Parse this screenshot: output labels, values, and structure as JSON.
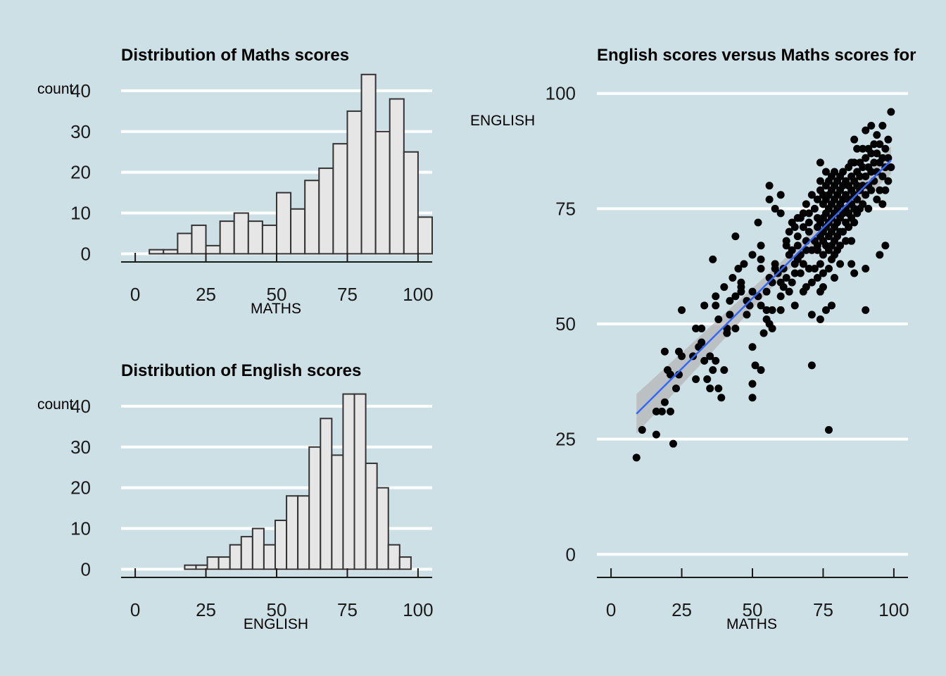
{
  "chart_data": [
    {
      "type": "bar",
      "title": "Distribution of Maths scores",
      "xlabel": "MATHS",
      "ylabel": "count",
      "xlim": [
        -5,
        105
      ],
      "ylim": [
        -2,
        45
      ],
      "xticks": [
        0,
        25,
        50,
        75,
        100
      ],
      "yticks": [
        0,
        10,
        20,
        30,
        40
      ],
      "grid": "horizontal",
      "bin_width": 5,
      "bins": [
        {
          "x": 10,
          "count": 1
        },
        {
          "x": 15,
          "count": 1
        },
        {
          "x": 20,
          "count": 5
        },
        {
          "x": 25,
          "count": 7
        },
        {
          "x": 30,
          "count": 2
        },
        {
          "x": 35,
          "count": 8
        },
        {
          "x": 40,
          "count": 10
        },
        {
          "x": 45,
          "count": 8
        },
        {
          "x": 50,
          "count": 7
        },
        {
          "x": 55,
          "count": 15
        },
        {
          "x": 60,
          "count": 11
        },
        {
          "x": 65,
          "count": 18
        },
        {
          "x": 70,
          "count": 21
        },
        {
          "x": 75,
          "count": 27
        },
        {
          "x": 80,
          "count": 35
        },
        {
          "x": 85,
          "count": 44
        },
        {
          "x": 90,
          "count": 30
        },
        {
          "x": 95,
          "count": 38
        },
        {
          "x": 100,
          "count": 25
        },
        {
          "x": 105,
          "count": 9
        }
      ]
    },
    {
      "type": "bar",
      "title": "Distribution of English scores",
      "xlabel": "ENGLISH",
      "ylabel": "count",
      "xlim": [
        -5,
        105
      ],
      "ylim": [
        -2,
        45
      ],
      "xticks": [
        0,
        25,
        50,
        75,
        100
      ],
      "yticks": [
        0,
        10,
        20,
        30,
        40
      ],
      "grid": "horizontal",
      "bin_width": 4,
      "bins": [
        {
          "x": 21.5,
          "count": 1
        },
        {
          "x": 25.5,
          "count": 1
        },
        {
          "x": 29.5,
          "count": 3
        },
        {
          "x": 33.5,
          "count": 3
        },
        {
          "x": 37.5,
          "count": 6
        },
        {
          "x": 41.5,
          "count": 8
        },
        {
          "x": 45.5,
          "count": 10
        },
        {
          "x": 49.5,
          "count": 6
        },
        {
          "x": 53.5,
          "count": 12
        },
        {
          "x": 57.5,
          "count": 18
        },
        {
          "x": 61.5,
          "count": 18
        },
        {
          "x": 65.5,
          "count": 30
        },
        {
          "x": 69.5,
          "count": 37
        },
        {
          "x": 73.5,
          "count": 28
        },
        {
          "x": 77.5,
          "count": 43
        },
        {
          "x": 81.5,
          "count": 43
        },
        {
          "x": 85.5,
          "count": 26
        },
        {
          "x": 89.5,
          "count": 20
        },
        {
          "x": 93.5,
          "count": 6
        },
        {
          "x": 97.5,
          "count": 3
        }
      ]
    },
    {
      "type": "scatter",
      "title": "English scores versus Maths scores for",
      "xlabel": "MATHS",
      "ylabel": "ENGLISH",
      "xlim": [
        -5,
        105
      ],
      "ylim": [
        -5,
        105
      ],
      "xticks": [
        0,
        25,
        50,
        75,
        100
      ],
      "yticks": [
        0,
        25,
        50,
        75,
        100
      ],
      "grid": "horizontal",
      "point_color": "#000000",
      "fit_line": {
        "x": [
          9,
          99
        ],
        "y": [
          30.5,
          85.5
        ],
        "color": "#3366ff",
        "band_color": "#b3b3b3"
      },
      "points": [
        [
          9,
          21
        ],
        [
          11,
          27
        ],
        [
          16,
          26
        ],
        [
          16,
          31
        ],
        [
          18,
          31
        ],
        [
          19,
          33
        ],
        [
          21,
          31
        ],
        [
          22,
          24
        ],
        [
          19,
          44
        ],
        [
          20,
          40
        ],
        [
          21,
          39
        ],
        [
          23,
          36
        ],
        [
          24,
          44
        ],
        [
          24,
          39
        ],
        [
          25,
          53
        ],
        [
          25,
          43
        ],
        [
          29,
          43
        ],
        [
          30,
          49
        ],
        [
          30,
          38
        ],
        [
          31,
          45
        ],
        [
          32,
          46
        ],
        [
          32,
          49
        ],
        [
          33,
          42
        ],
        [
          34,
          38
        ],
        [
          33,
          54
        ],
        [
          35,
          43
        ],
        [
          35,
          36
        ],
        [
          36,
          40
        ],
        [
          36,
          64
        ],
        [
          37,
          42
        ],
        [
          37,
          56
        ],
        [
          37,
          54
        ],
        [
          38,
          36
        ],
        [
          38,
          51
        ],
        [
          39,
          34
        ],
        [
          40,
          40
        ],
        [
          40,
          58
        ],
        [
          41,
          49
        ],
        [
          41,
          48
        ],
        [
          42,
          52
        ],
        [
          42,
          55
        ],
        [
          43,
          60
        ],
        [
          44,
          49
        ],
        [
          44,
          69
        ],
        [
          44,
          56
        ],
        [
          45,
          62
        ],
        [
          46,
          57
        ],
        [
          46,
          58
        ],
        [
          46,
          59
        ],
        [
          47,
          63
        ],
        [
          48,
          55
        ],
        [
          48,
          52
        ],
        [
          49,
          54
        ],
        [
          50,
          65
        ],
        [
          50,
          45
        ],
        [
          50,
          57
        ],
        [
          50,
          37
        ],
        [
          50,
          34
        ],
        [
          51,
          41
        ],
        [
          52,
          56
        ],
        [
          53,
          40
        ],
        [
          53,
          64
        ],
        [
          53,
          54
        ],
        [
          53,
          67
        ],
        [
          53,
          62
        ],
        [
          52,
          72
        ],
        [
          54,
          48
        ],
        [
          55,
          53
        ],
        [
          55,
          51
        ],
        [
          55,
          57
        ],
        [
          56,
          50
        ],
        [
          56,
          60
        ],
        [
          56,
          77
        ],
        [
          56,
          80
        ],
        [
          57,
          53
        ],
        [
          57,
          49
        ],
        [
          57,
          59
        ],
        [
          58,
          75
        ],
        [
          58,
          63
        ],
        [
          58,
          62
        ],
        [
          59,
          61
        ],
        [
          60,
          53
        ],
        [
          60,
          74
        ],
        [
          60,
          78
        ],
        [
          60,
          56
        ],
        [
          60,
          59
        ],
        [
          61,
          62
        ],
        [
          61,
          58
        ],
        [
          62,
          60
        ],
        [
          62,
          67
        ],
        [
          62,
          68
        ],
        [
          63,
          65
        ],
        [
          63,
          70
        ],
        [
          63,
          57
        ],
        [
          64,
          59
        ],
        [
          64,
          66
        ],
        [
          64,
          72
        ],
        [
          65,
          61
        ],
        [
          65,
          71
        ],
        [
          65,
          63
        ],
        [
          65,
          54
        ],
        [
          66,
          69
        ],
        [
          66,
          73
        ],
        [
          66,
          64
        ],
        [
          66,
          67
        ],
        [
          67,
          73
        ],
        [
          67,
          61
        ],
        [
          67,
          65
        ],
        [
          68,
          71
        ],
        [
          68,
          57
        ],
        [
          68,
          63
        ],
        [
          68,
          74
        ],
        [
          69,
          68
        ],
        [
          69,
          76
        ],
        [
          69,
          66
        ],
        [
          69,
          58
        ],
        [
          70,
          70
        ],
        [
          70,
          72
        ],
        [
          70,
          62
        ],
        [
          70,
          74
        ],
        [
          71,
          59
        ],
        [
          71,
          66
        ],
        [
          71,
          52
        ],
        [
          71,
          41
        ],
        [
          71,
          78
        ],
        [
          72,
          68
        ],
        [
          72,
          75
        ],
        [
          72,
          62
        ],
        [
          73,
          60
        ],
        [
          73,
          73
        ],
        [
          73,
          67
        ],
        [
          73,
          66
        ],
        [
          73,
          77
        ],
        [
          73,
          71
        ],
        [
          74,
          51
        ],
        [
          74,
          57
        ],
        [
          74,
          63
        ],
        [
          74,
          69
        ],
        [
          74,
          72
        ],
        [
          74,
          79
        ],
        [
          74,
          81
        ],
        [
          74,
          85
        ],
        [
          75,
          58
        ],
        [
          75,
          61
        ],
        [
          75,
          65
        ],
        [
          75,
          68
        ],
        [
          75,
          70
        ],
        [
          75,
          73
        ],
        [
          75,
          76
        ],
        [
          75,
          78
        ],
        [
          76,
          53
        ],
        [
          76,
          67
        ],
        [
          76,
          71
        ],
        [
          76,
          74
        ],
        [
          76,
          77
        ],
        [
          76,
          80
        ],
        [
          76,
          83
        ],
        [
          77,
          27
        ],
        [
          77,
          62
        ],
        [
          77,
          66
        ],
        [
          77,
          69
        ],
        [
          77,
          72
        ],
        [
          77,
          75
        ],
        [
          77,
          78
        ],
        [
          77,
          81
        ],
        [
          78,
          54
        ],
        [
          78,
          64
        ],
        [
          78,
          67
        ],
        [
          78,
          70
        ],
        [
          78,
          73
        ],
        [
          78,
          76
        ],
        [
          78,
          79
        ],
        [
          78,
          82
        ],
        [
          79,
          60
        ],
        [
          79,
          65
        ],
        [
          79,
          68
        ],
        [
          79,
          71
        ],
        [
          79,
          74
        ],
        [
          79,
          77
        ],
        [
          79,
          80
        ],
        [
          79,
          83
        ],
        [
          80,
          66
        ],
        [
          80,
          69
        ],
        [
          80,
          72
        ],
        [
          80,
          75
        ],
        [
          80,
          78
        ],
        [
          80,
          81
        ],
        [
          81,
          63
        ],
        [
          81,
          67
        ],
        [
          81,
          70
        ],
        [
          81,
          73
        ],
        [
          81,
          76
        ],
        [
          81,
          79
        ],
        [
          81,
          82
        ],
        [
          82,
          70
        ],
        [
          82,
          74
        ],
        [
          82,
          77
        ],
        [
          82,
          80
        ],
        [
          82,
          83
        ],
        [
          83,
          68
        ],
        [
          83,
          72
        ],
        [
          83,
          75
        ],
        [
          83,
          78
        ],
        [
          83,
          81
        ],
        [
          84,
          71
        ],
        [
          84,
          74
        ],
        [
          84,
          77
        ],
        [
          84,
          80
        ],
        [
          84,
          84
        ],
        [
          85,
          63
        ],
        [
          85,
          68
        ],
        [
          85,
          73
        ],
        [
          85,
          76
        ],
        [
          85,
          79
        ],
        [
          85,
          82
        ],
        [
          85,
          85
        ],
        [
          86,
          61
        ],
        [
          86,
          72
        ],
        [
          86,
          75
        ],
        [
          86,
          78
        ],
        [
          86,
          81
        ],
        [
          86,
          85
        ],
        [
          86,
          90
        ],
        [
          87,
          74
        ],
        [
          87,
          77
        ],
        [
          87,
          80
        ],
        [
          87,
          83
        ],
        [
          87,
          88
        ],
        [
          88,
          75
        ],
        [
          88,
          79
        ],
        [
          88,
          82
        ],
        [
          88,
          85
        ],
        [
          89,
          76
        ],
        [
          89,
          80
        ],
        [
          89,
          84
        ],
        [
          89,
          88
        ],
        [
          90,
          53
        ],
        [
          90,
          62
        ],
        [
          90,
          78
        ],
        [
          90,
          82
        ],
        [
          90,
          86
        ],
        [
          90,
          92
        ],
        [
          91,
          75
        ],
        [
          91,
          80
        ],
        [
          91,
          84
        ],
        [
          91,
          88
        ],
        [
          92,
          79
        ],
        [
          92,
          83
        ],
        [
          92,
          87
        ],
        [
          92,
          93
        ],
        [
          93,
          81
        ],
        [
          93,
          85
        ],
        [
          93,
          89
        ],
        [
          94,
          77
        ],
        [
          94,
          83
        ],
        [
          94,
          87
        ],
        [
          94,
          91
        ],
        [
          95,
          65
        ],
        [
          95,
          79
        ],
        [
          95,
          85
        ],
        [
          95,
          89
        ],
        [
          96,
          76
        ],
        [
          96,
          82
        ],
        [
          96,
          86
        ],
        [
          96,
          93
        ],
        [
          97,
          67
        ],
        [
          97,
          79
        ],
        [
          97,
          84
        ],
        [
          97,
          88
        ],
        [
          98,
          81
        ],
        [
          98,
          86
        ],
        [
          98,
          90
        ],
        [
          99,
          84
        ],
        [
          99,
          96
        ]
      ]
    }
  ]
}
